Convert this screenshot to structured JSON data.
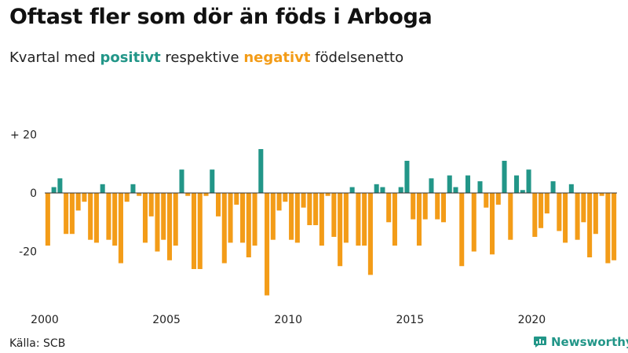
{
  "title": "Oftast fler som dör än föds i Arboga",
  "subtitle": {
    "prefix": "Kvartal med ",
    "positive": "positivt",
    "middle": " respektive ",
    "negative": "negativt",
    "suffix": " födelsenetto"
  },
  "source": "Källa: SCB",
  "brand": "Newsworthy",
  "colors": {
    "positive": "#229688",
    "negative": "#F39C18",
    "text": "#222222"
  },
  "chart_data": {
    "type": "bar",
    "title": "Oftast fler som dör än föds i Arboga",
    "xlabel": "",
    "ylabel": "",
    "ylim": [
      -36,
      20
    ],
    "yticks": [
      {
        "value": 20,
        "label": "+ 20"
      },
      {
        "value": 0,
        "label": "0"
      },
      {
        "value": -20,
        "label": "-20"
      }
    ],
    "xticks": [
      {
        "value": 2000,
        "label": "2000"
      },
      {
        "value": 2005,
        "label": "2005"
      },
      {
        "value": 2010,
        "label": "2010"
      },
      {
        "value": 2015,
        "label": "2015"
      },
      {
        "value": 2020,
        "label": "2020"
      }
    ],
    "start_year": 2000,
    "values": [
      -18,
      2,
      5,
      -14,
      -14,
      -6,
      -3,
      -16,
      -17,
      3,
      -16,
      -18,
      -24,
      -3,
      3,
      -1,
      -17,
      -8,
      -20,
      -16,
      -23,
      -18,
      8,
      -1,
      -26,
      -26,
      -1,
      8,
      -8,
      -24,
      -17,
      -4,
      -17,
      -22,
      -18,
      15,
      -35,
      -16,
      -6,
      -3,
      -16,
      -17,
      -5,
      -11,
      -11,
      -18,
      -1,
      -15,
      -25,
      -17,
      2,
      -18,
      -18,
      -28,
      3,
      2,
      -10,
      -18,
      2,
      11,
      -9,
      -18,
      -9,
      5,
      -9,
      -10,
      6,
      2,
      -25,
      6,
      -20,
      4,
      -5,
      -21,
      -4,
      11,
      -16,
      6,
      1,
      8,
      -15,
      -12,
      -7,
      4,
      -13,
      -17,
      3,
      -16,
      -10,
      -22,
      -14,
      -1,
      -24,
      -23
    ],
    "grid": false,
    "legend": "none"
  }
}
